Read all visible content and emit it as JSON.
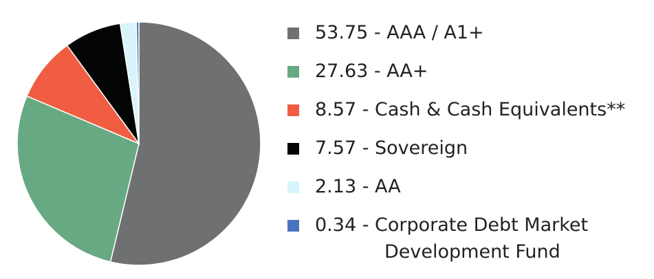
{
  "chart_data": {
    "type": "pie",
    "title": "",
    "start": "top, clockwise",
    "slices": [
      {
        "value": 53.75,
        "label": "53.75 - AAA / A1+",
        "label_2": "",
        "color": "#6f7072"
      },
      {
        "value": 27.63,
        "label": "27.63 - AA+",
        "label_2": "",
        "color": "#67a982"
      },
      {
        "value": 8.57,
        "label": "8.57 - Cash & Cash Equivalents**",
        "label_2": "",
        "color": "#f05d43"
      },
      {
        "value": 7.57,
        "label": "7.57 - Sovereign",
        "label_2": "",
        "color": "#030404"
      },
      {
        "value": 2.13,
        "label": "2.13 - AA",
        "label_2": "",
        "color": "#d8f5fb"
      },
      {
        "value": 0.34,
        "label": "0.34 - Corporate Debt Market",
        "label_2": "Development Fund",
        "color": "#4a74bf"
      }
    ],
    "legend_position": "right"
  }
}
